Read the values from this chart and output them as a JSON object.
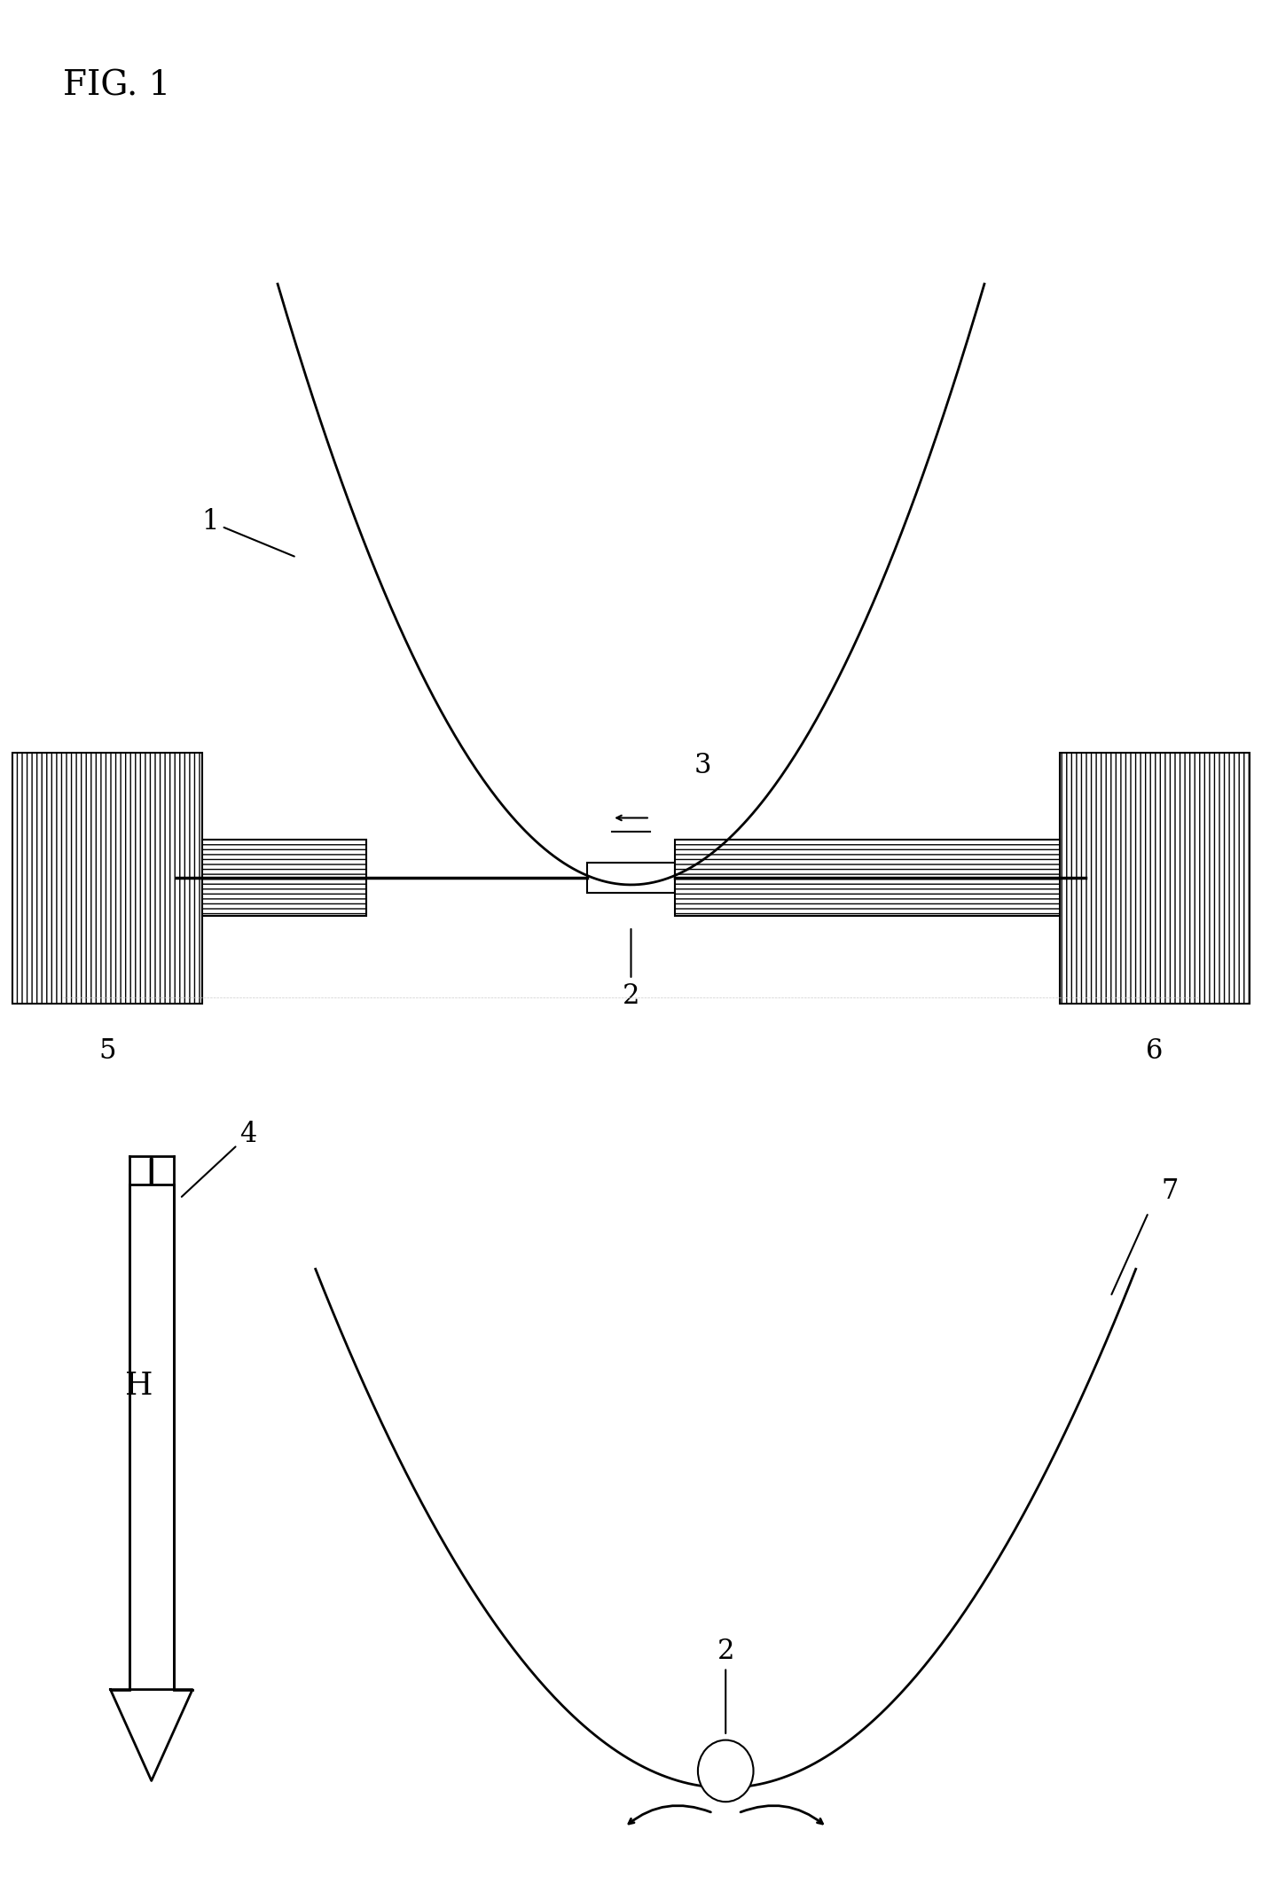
{
  "title": "FIG. 1",
  "bg_color": "#ffffff",
  "line_color": "#000000",
  "fig_width": 14.23,
  "fig_height": 21.43,
  "label_1": "1",
  "label_2": "2",
  "label_3": "3",
  "label_4": "4",
  "label_5": "5",
  "label_6": "6",
  "label_7": "7",
  "H_label": "H"
}
